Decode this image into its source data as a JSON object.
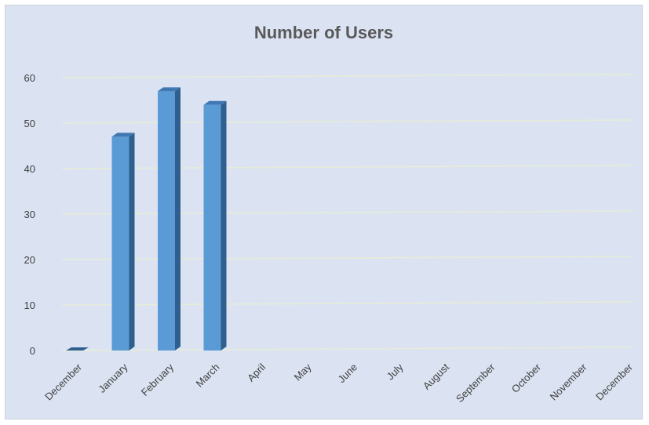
{
  "chart_data": {
    "type": "bar",
    "title": "Number of Users",
    "categories": [
      "December",
      "January",
      "February",
      "March",
      "April",
      "May",
      "June",
      "July",
      "August",
      "September",
      "October",
      "November",
      "December"
    ],
    "values": [
      0,
      47,
      57,
      54,
      null,
      null,
      null,
      null,
      null,
      null,
      null,
      null,
      null
    ],
    "ylim": [
      0,
      60
    ],
    "yticks": [
      0,
      10,
      20,
      30,
      40,
      50,
      60
    ],
    "grid": true,
    "bar_style": "3d-column",
    "colors": {
      "background": "#dbe3f2",
      "bar_front": "#5b9bd5",
      "bar_side": "#2e5f8e",
      "bar_top": "#3f78b3",
      "gridline": "#e7ecd7",
      "text": "#404040",
      "title": "#595959"
    }
  }
}
